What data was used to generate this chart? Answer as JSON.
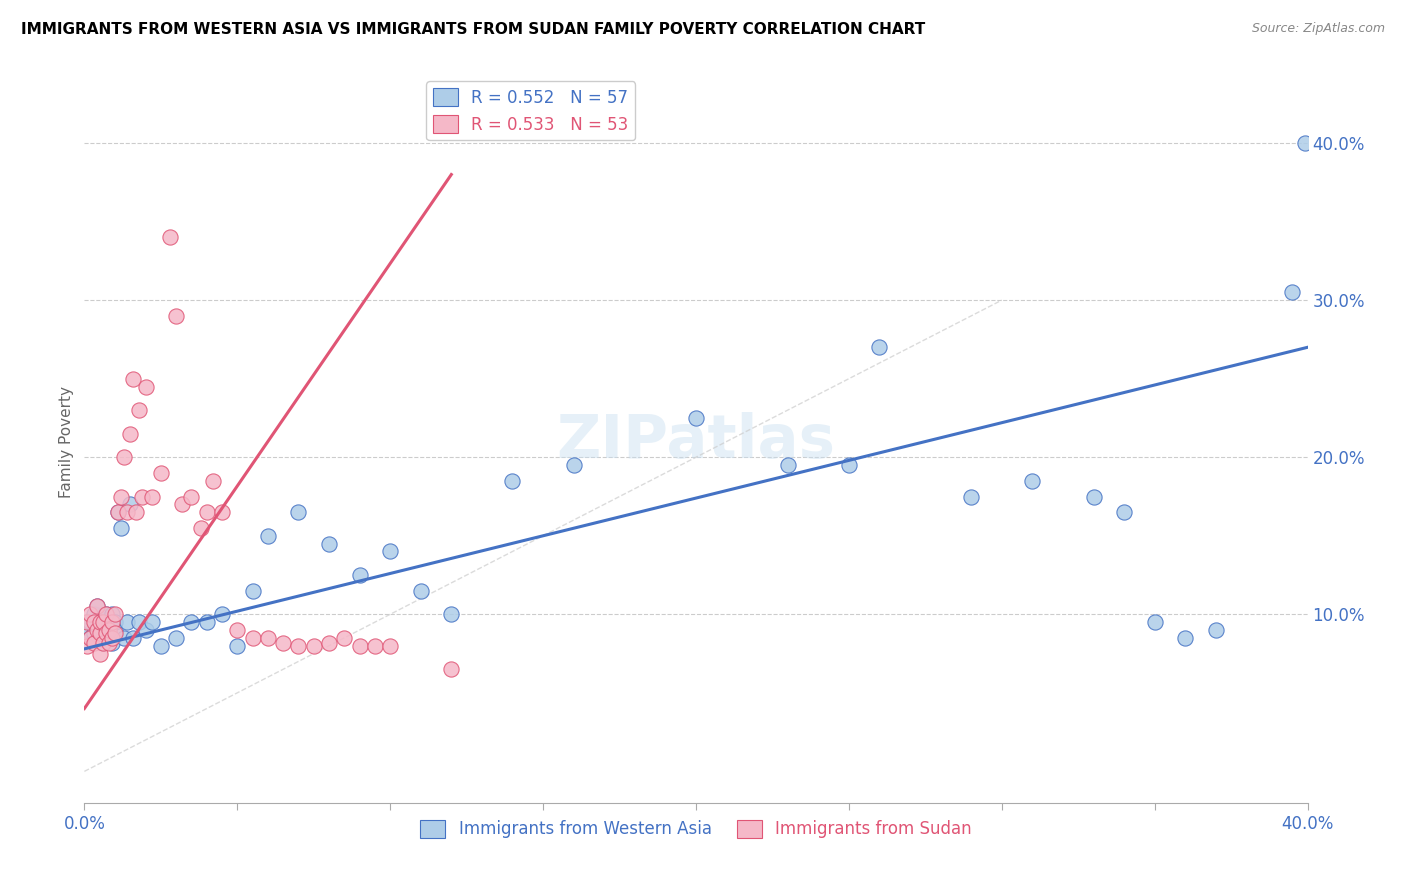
{
  "title": "IMMIGRANTS FROM WESTERN ASIA VS IMMIGRANTS FROM SUDAN FAMILY POVERTY CORRELATION CHART",
  "source": "Source: ZipAtlas.com",
  "ylabel": "Family Poverty",
  "xlim": [
    0.0,
    0.4
  ],
  "ylim": [
    -0.02,
    0.44
  ],
  "yticks": [
    0.0,
    0.1,
    0.2,
    0.3,
    0.4
  ],
  "ytick_labels": [
    "",
    "10.0%",
    "20.0%",
    "30.0%",
    "40.0%"
  ],
  "legend_r1": "R = 0.552   N = 57",
  "legend_r2": "R = 0.533   N = 53",
  "legend_label1": "Immigrants from Western Asia",
  "legend_label2": "Immigrants from Sudan",
  "color_western_asia": "#aecde8",
  "color_sudan": "#f5b8c8",
  "color_line_western_asia": "#4472c4",
  "color_line_sudan": "#e05575",
  "color_diagonal": "#cccccc",
  "wa_line_x0": 0.0,
  "wa_line_y0": 0.078,
  "wa_line_x1": 0.4,
  "wa_line_y1": 0.27,
  "sd_line_x0": 0.0,
  "sd_line_y0": 0.04,
  "sd_line_x1": 0.12,
  "sd_line_y1": 0.38,
  "western_asia_x": [
    0.001,
    0.002,
    0.002,
    0.003,
    0.003,
    0.004,
    0.004,
    0.005,
    0.005,
    0.006,
    0.006,
    0.007,
    0.007,
    0.008,
    0.008,
    0.009,
    0.009,
    0.01,
    0.01,
    0.011,
    0.012,
    0.013,
    0.014,
    0.015,
    0.016,
    0.018,
    0.02,
    0.022,
    0.025,
    0.03,
    0.035,
    0.04,
    0.045,
    0.05,
    0.055,
    0.06,
    0.07,
    0.08,
    0.09,
    0.1,
    0.11,
    0.12,
    0.14,
    0.16,
    0.2,
    0.23,
    0.25,
    0.26,
    0.29,
    0.31,
    0.33,
    0.34,
    0.35,
    0.36,
    0.37,
    0.395,
    0.399
  ],
  "western_asia_y": [
    0.09,
    0.085,
    0.095,
    0.088,
    0.1,
    0.092,
    0.105,
    0.088,
    0.095,
    0.082,
    0.098,
    0.085,
    0.1,
    0.088,
    0.095,
    0.082,
    0.1,
    0.09,
    0.095,
    0.165,
    0.155,
    0.085,
    0.095,
    0.17,
    0.085,
    0.095,
    0.09,
    0.095,
    0.08,
    0.085,
    0.095,
    0.095,
    0.1,
    0.08,
    0.115,
    0.15,
    0.165,
    0.145,
    0.125,
    0.14,
    0.115,
    0.1,
    0.185,
    0.195,
    0.225,
    0.195,
    0.195,
    0.27,
    0.175,
    0.185,
    0.175,
    0.165,
    0.095,
    0.085,
    0.09,
    0.305,
    0.4
  ],
  "sudan_x": [
    0.001,
    0.001,
    0.002,
    0.002,
    0.003,
    0.003,
    0.004,
    0.004,
    0.005,
    0.005,
    0.005,
    0.006,
    0.006,
    0.007,
    0.007,
    0.008,
    0.008,
    0.009,
    0.009,
    0.01,
    0.01,
    0.011,
    0.012,
    0.013,
    0.014,
    0.015,
    0.016,
    0.017,
    0.018,
    0.019,
    0.02,
    0.022,
    0.025,
    0.028,
    0.03,
    0.032,
    0.035,
    0.038,
    0.04,
    0.042,
    0.045,
    0.05,
    0.055,
    0.06,
    0.065,
    0.07,
    0.075,
    0.08,
    0.085,
    0.09,
    0.095,
    0.1,
    0.12
  ],
  "sudan_y": [
    0.08,
    0.095,
    0.085,
    0.1,
    0.082,
    0.095,
    0.09,
    0.105,
    0.075,
    0.088,
    0.095,
    0.082,
    0.095,
    0.088,
    0.1,
    0.082,
    0.09,
    0.095,
    0.085,
    0.088,
    0.1,
    0.165,
    0.175,
    0.2,
    0.165,
    0.215,
    0.25,
    0.165,
    0.23,
    0.175,
    0.245,
    0.175,
    0.19,
    0.34,
    0.29,
    0.17,
    0.175,
    0.155,
    0.165,
    0.185,
    0.165,
    0.09,
    0.085,
    0.085,
    0.082,
    0.08,
    0.08,
    0.082,
    0.085,
    0.08,
    0.08,
    0.08,
    0.065
  ]
}
